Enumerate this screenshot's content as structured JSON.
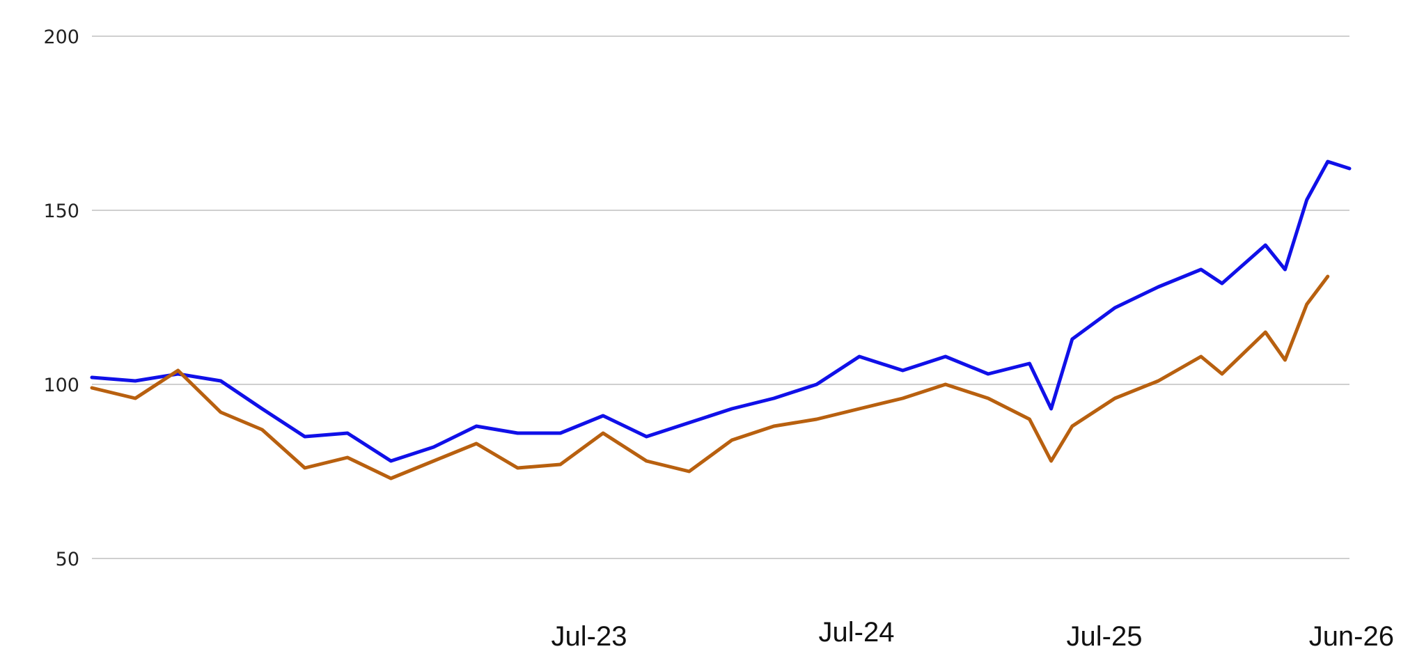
{
  "chart_data": {
    "type": "line",
    "x_axis": {
      "tick_labels": [
        "Jul-23",
        "Jul-24",
        "Jul-25",
        "Jun-26"
      ]
    },
    "y_axis": {
      "ticks": [
        50,
        100,
        150,
        200
      ],
      "tick_labels": [
        "50",
        "100",
        "150",
        "200"
      ],
      "ylim": [
        50,
        200
      ]
    },
    "grid": true,
    "legend": "none",
    "series": [
      {
        "color": "#1010e8",
        "dates": [
          "2021-07",
          "2021-09",
          "2021-11",
          "2022-01",
          "2022-03",
          "2022-05",
          "2022-07",
          "2022-09",
          "2022-11",
          "2023-01",
          "2023-03",
          "2023-05",
          "2023-07",
          "2023-09",
          "2023-11",
          "2024-01",
          "2024-03",
          "2024-05",
          "2024-07",
          "2024-09",
          "2024-11",
          "2025-01",
          "2025-03",
          "2025-04",
          "2025-05",
          "2025-07",
          "2025-09",
          "2025-11",
          "2025-12",
          "2026-02",
          "2026-03",
          "2026-04",
          "2026-05",
          "2026-06"
        ],
        "values": [
          102,
          101,
          103,
          101,
          93,
          85,
          86,
          78,
          82,
          88,
          86,
          86,
          91,
          85,
          89,
          93,
          96,
          100,
          108,
          104,
          108,
          103,
          106,
          93,
          113,
          122,
          128,
          133,
          129,
          140,
          133,
          153,
          164,
          162
        ]
      },
      {
        "color": "#b8600f",
        "dates": [
          "2021-07",
          "2021-09",
          "2021-11",
          "2022-01",
          "2022-03",
          "2022-05",
          "2022-07",
          "2022-09",
          "2022-11",
          "2023-01",
          "2023-03",
          "2023-05",
          "2023-07",
          "2023-09",
          "2023-11",
          "2024-01",
          "2024-03",
          "2024-05",
          "2024-07",
          "2024-09",
          "2024-11",
          "2025-01",
          "2025-03",
          "2025-04",
          "2025-05",
          "2025-07",
          "2025-09",
          "2025-11",
          "2025-12",
          "2026-02",
          "2026-03",
          "2026-04",
          "2026-05"
        ],
        "values": [
          99,
          96,
          104,
          92,
          87,
          76,
          79,
          73,
          78,
          83,
          76,
          77,
          86,
          78,
          75,
          84,
          88,
          90,
          93,
          96,
          100,
          96,
          90,
          78,
          88,
          96,
          101,
          108,
          103,
          115,
          107,
          123,
          131
        ]
      }
    ]
  }
}
